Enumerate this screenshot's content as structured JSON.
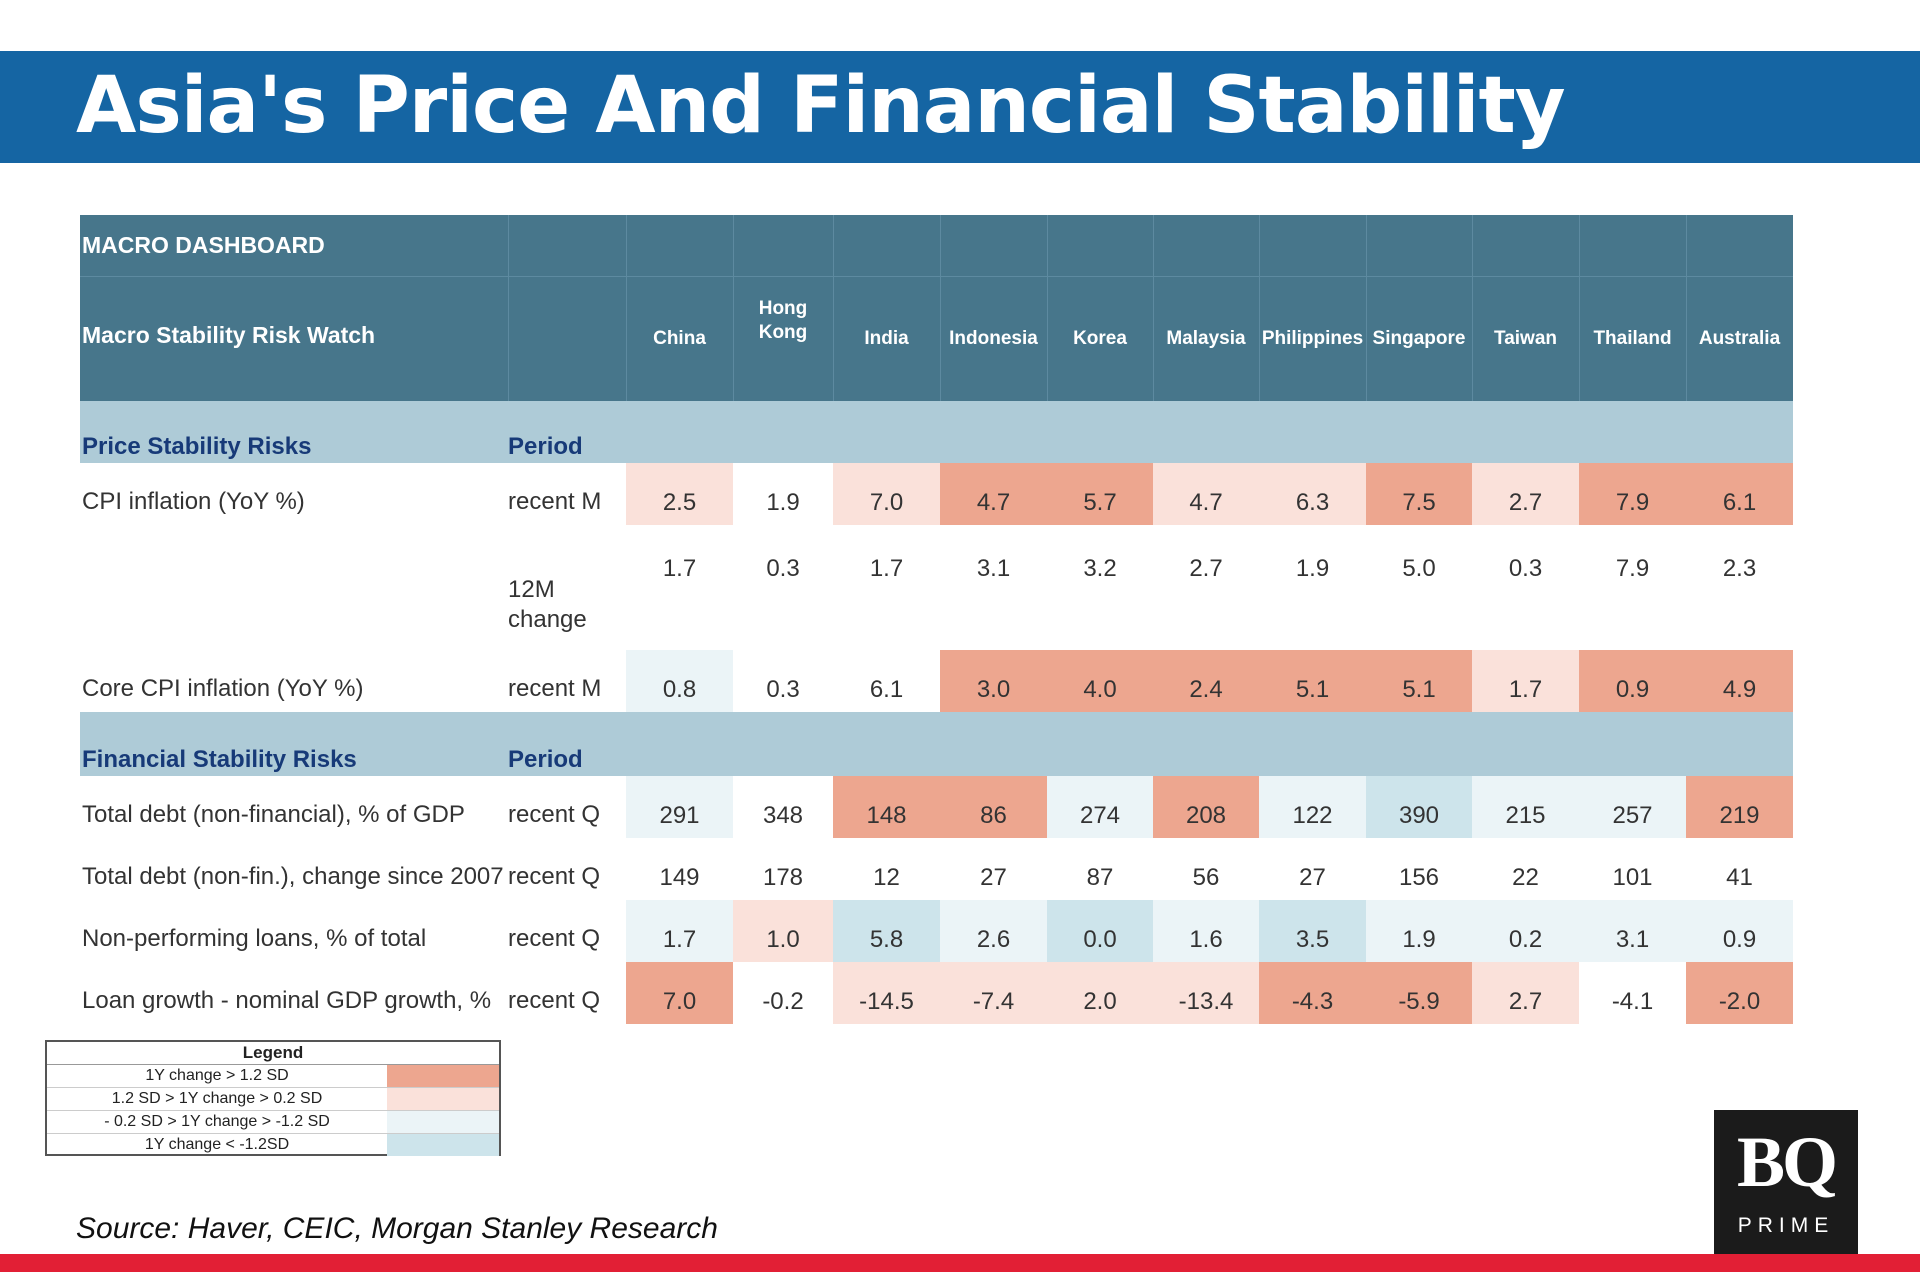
{
  "title": "Asia's Price And Financial Stability",
  "dashboard": {
    "title": "MACRO DASHBOARD",
    "subtitle": "Macro Stability  Risk Watch",
    "countries": [
      "China",
      "Hong Kong",
      "India",
      "Indonesia",
      "Korea",
      "Malaysia",
      "Philippines",
      "Singapore",
      "Taiwan",
      "Thailand",
      "Australia"
    ],
    "sections": [
      {
        "name": "Price Stability Risks",
        "period_header": "Period",
        "rows": [
          {
            "label": "CPI inflation (YoY %)",
            "period": "recent M",
            "values": [
              "2.5",
              "1.9",
              "7.0",
              "4.7",
              "5.7",
              "4.7",
              "6.3",
              "7.5",
              "2.7",
              "7.9",
              "6.1"
            ],
            "colors": [
              "mild",
              "none",
              "mild",
              "strong",
              "strong",
              "mild",
              "mild",
              "strong",
              "mild",
              "strong",
              "strong"
            ]
          },
          {
            "label": "",
            "period": "12M change",
            "values": [
              "1.7",
              "0.3",
              "1.7",
              "3.1",
              "3.2",
              "2.7",
              "1.9",
              "5.0",
              "0.3",
              "7.9",
              "2.3"
            ],
            "colors": [
              "none",
              "none",
              "none",
              "none",
              "none",
              "none",
              "none",
              "none",
              "none",
              "none",
              "none"
            ]
          },
          {
            "label": "Core CPI inflation (YoY %)",
            "period": "recent M",
            "values": [
              "0.8",
              "0.3",
              "6.1",
              "3.0",
              "4.0",
              "2.4",
              "5.1",
              "5.1",
              "1.7",
              "0.9",
              "4.9"
            ],
            "colors": [
              "low",
              "none",
              "none",
              "strong",
              "strong",
              "strong",
              "strong",
              "strong",
              "mild",
              "strong",
              "strong"
            ]
          }
        ]
      },
      {
        "name": "Financial Stability Risks",
        "period_header": "Period",
        "rows": [
          {
            "label": "Total debt (non-financial), % of GDP",
            "period": "recent Q",
            "values": [
              "291",
              "348",
              "148",
              "86",
              "274",
              "208",
              "122",
              "390",
              "215",
              "257",
              "219"
            ],
            "colors": [
              "low",
              "none",
              "strong",
              "strong",
              "low",
              "strong",
              "low",
              "verylow",
              "low",
              "low",
              "strong"
            ]
          },
          {
            "label": "Total debt (non-fin.), change since 2007",
            "period": "recent Q",
            "values": [
              "149",
              "178",
              "12",
              "27",
              "87",
              "56",
              "27",
              "156",
              "22",
              "101",
              "41"
            ],
            "colors": [
              "none",
              "none",
              "none",
              "none",
              "none",
              "none",
              "none",
              "none",
              "none",
              "none",
              "none"
            ]
          },
          {
            "label": "Non-performing loans, % of total",
            "period": "recent Q",
            "values": [
              "1.7",
              "1.0",
              "5.8",
              "2.6",
              "0.0",
              "1.6",
              "3.5",
              "1.9",
              "0.2",
              "3.1",
              "0.9"
            ],
            "colors": [
              "low",
              "mild",
              "verylow",
              "low",
              "verylow",
              "low",
              "verylow",
              "low",
              "low",
              "low",
              "low"
            ]
          },
          {
            "label": "Loan growth - nominal GDP growth, %",
            "period": "recent Q",
            "values": [
              "7.0",
              "-0.2",
              "-14.5",
              "-7.4",
              "2.0",
              "-13.4",
              "-4.3",
              "-5.9",
              "2.7",
              "-4.1",
              "-2.0"
            ],
            "colors": [
              "strong",
              "none",
              "mild",
              "mild",
              "mild",
              "mild",
              "strong",
              "strong",
              "mild",
              "none",
              "strong"
            ]
          }
        ]
      }
    ]
  },
  "legend": {
    "title": "Legend",
    "items": [
      {
        "label": "1Y change > 1.2 SD",
        "color": "#eda68f"
      },
      {
        "label": "1.2 SD  > 1Y change > 0.2 SD",
        "color": "#fae1da"
      },
      {
        "label": "- 0.2 SD > 1Y change > -1.2 SD",
        "color": "#ebf4f7"
      },
      {
        "label": "1Y change < -1.2SD",
        "color": "#cde4eb"
      }
    ]
  },
  "source": "Source: Haver, CEIC, Morgan Stanley Research",
  "logo": {
    "main": "BQ",
    "sub": "PRIME"
  }
}
